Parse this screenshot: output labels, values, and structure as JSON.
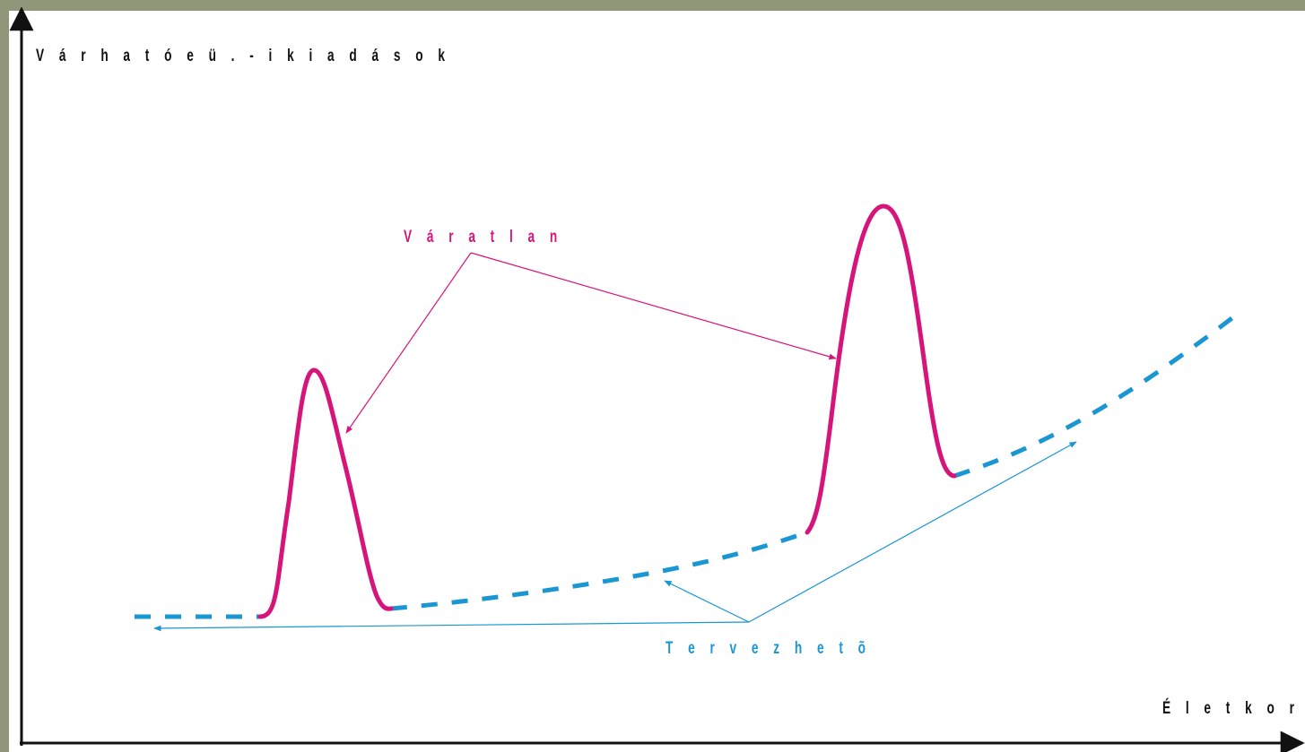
{
  "labels": {
    "y_axis": "V á r h a t ó   e ü . - i   k i a d á s o k",
    "x_axis": "É l e t k o r",
    "unexpected": "V á r a t l a n",
    "plannable": "T e r v e z h e t õ"
  },
  "colors": {
    "background_frame": "#8f9679",
    "canvas": "#ffffff",
    "unexpected": "#d6157b",
    "plannable": "#1a96d2",
    "axes": "#111111"
  }
}
